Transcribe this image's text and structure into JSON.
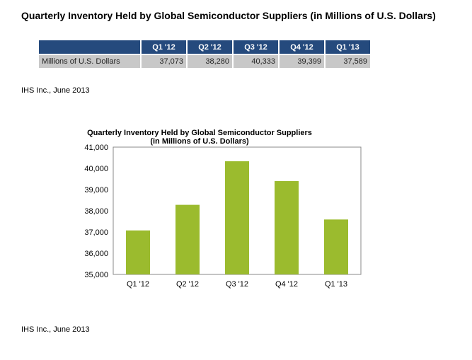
{
  "title": "Quarterly Inventory Held by Global Semiconductor Suppliers (in Millions of U.S. Dollars)",
  "table": {
    "headers": [
      "Q1 '12",
      "Q2 '12",
      "Q3 '12",
      "Q4 '12",
      "Q1 '13"
    ],
    "row_label": "Millions of U.S. Dollars",
    "values": [
      "37,073",
      "38,280",
      "40,333",
      "39,399",
      "37,589"
    ]
  },
  "source_top": "IHS Inc., June 2013",
  "source_bottom": "IHS Inc., June 2013",
  "chart_data": {
    "type": "bar",
    "title_line1": "Quarterly Inventory Held by Global Semiconductor Suppliers",
    "title_line2": "(in Millions of U.S. Dollars)",
    "categories": [
      "Q1 '12",
      "Q2 '12",
      "Q3 '12",
      "Q4 '12",
      "Q1 '13"
    ],
    "values": [
      37073,
      38280,
      40333,
      39399,
      37589
    ],
    "ylim": [
      35000,
      41000
    ],
    "yticks": [
      "35,000",
      "36,000",
      "37,000",
      "38,000",
      "39,000",
      "40,000",
      "41,000"
    ],
    "bar_color": "#9bbb2e",
    "grid": false,
    "legend": false
  }
}
